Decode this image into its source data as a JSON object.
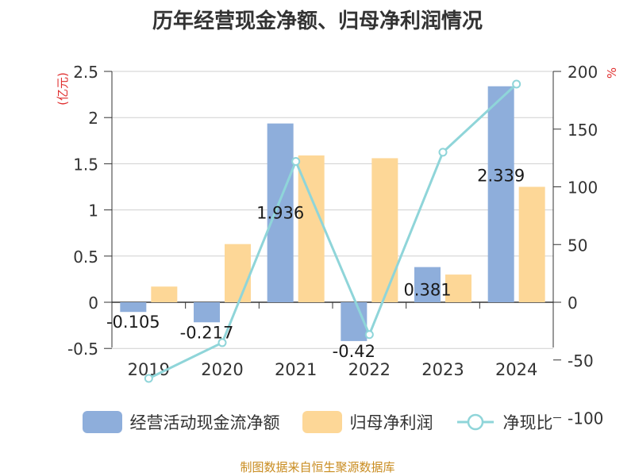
{
  "colors": {
    "bar_cash": "#8eaedb",
    "bar_profit": "#fdd797",
    "line": "#8fd5d9",
    "axis_unit": "#e03030",
    "footer": "#c98c20",
    "text": "#333333"
  },
  "chart_data": {
    "type": "bar+line",
    "title": "历年经营现金净额、归母净利润情况",
    "categories": [
      "2019",
      "2020",
      "2021",
      "2022",
      "2023",
      "2024"
    ],
    "y_left": {
      "label": "(亿元)",
      "ylim": [
        -0.5,
        2.5
      ],
      "ticks": [
        "-0.5",
        "0",
        "0.5",
        "1",
        "1.5",
        "2",
        "2.5"
      ],
      "tick_values": [
        -0.5,
        0,
        0.5,
        1,
        1.5,
        2,
        2.5
      ]
    },
    "y_right": {
      "label": "%",
      "ylim": [
        -100,
        200
      ],
      "ticks": [
        "-100",
        "-50",
        "0",
        "50",
        "100",
        "150",
        "200"
      ],
      "tick_values": [
        -100,
        -50,
        0,
        50,
        100,
        150,
        200
      ]
    },
    "series": [
      {
        "name": "经营活动现金流净额",
        "type": "bar",
        "axis": "left",
        "values": [
          -0.105,
          -0.217,
          1.936,
          -0.42,
          0.381,
          2.339
        ],
        "labels": [
          "-0.105",
          "-0.217",
          "1.936",
          "-0.42",
          "0.381",
          "2.339"
        ]
      },
      {
        "name": "归母净利润",
        "type": "bar",
        "axis": "left",
        "values": [
          0.17,
          0.63,
          1.59,
          1.56,
          0.3,
          1.25
        ]
      },
      {
        "name": "净现比",
        "type": "line",
        "axis": "right",
        "values": [
          -66,
          -35,
          122,
          -28,
          130,
          189
        ]
      }
    ],
    "grid": true,
    "legend_position": "bottom"
  },
  "legend": {
    "cash_label": "经营活动现金流净额",
    "profit_label": "归母净利润",
    "ratio_label": "净现比"
  },
  "footer": "制图数据来自恒生聚源数据库"
}
